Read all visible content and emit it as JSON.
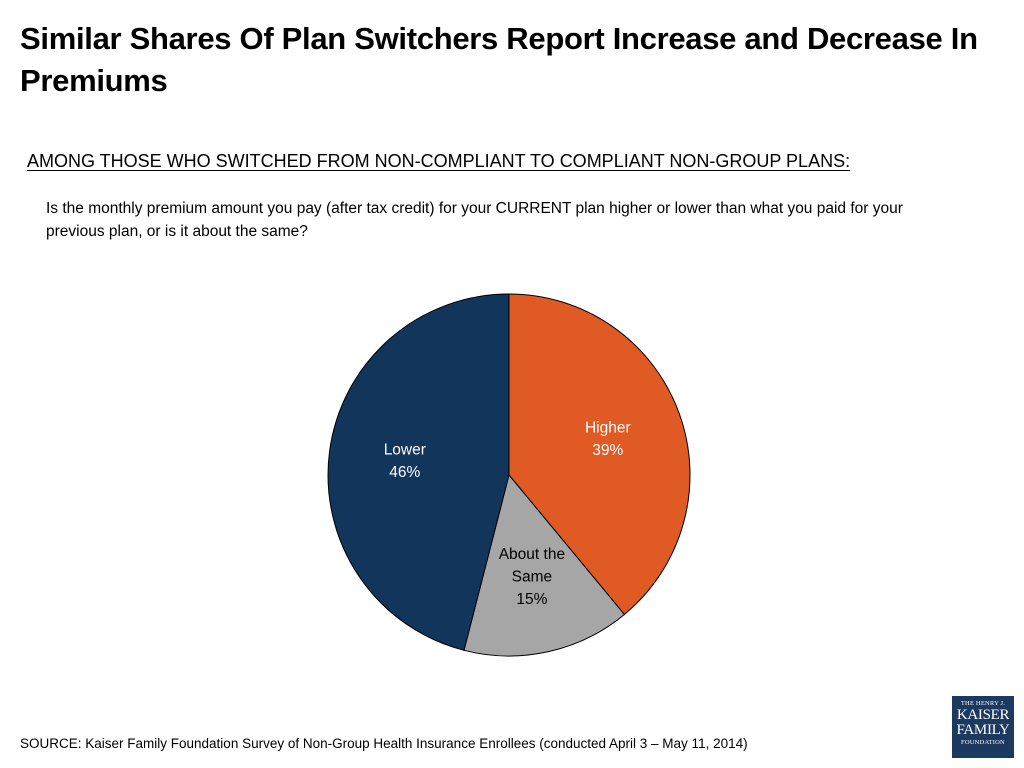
{
  "slide": {
    "title": "Similar Shares Of Plan Switchers Report Increase and Decrease In Premiums",
    "subtitle": "AMONG THOSE WHO SWITCHED FROM NON-COMPLIANT TO COMPLIANT NON-GROUP PLANS:",
    "question": "Is the monthly premium amount you pay (after tax credit) for your CURRENT plan higher or lower than what you paid for your previous plan, or is it about the same?",
    "source": "SOURCE: Kaiser Family Foundation Survey of Non-Group Health Insurance Enrollees (conducted April 3 – May 11, 2014)"
  },
  "logo": {
    "line1": "THE HENRY J.",
    "line2": "KAISER",
    "line3": "FAMILY",
    "line4": "FOUNDATION",
    "color": "#1c3a5f"
  },
  "chart_data": {
    "type": "pie",
    "title": "",
    "start": "12 o'clock, clockwise",
    "slices": [
      {
        "key": "higher",
        "label": "Higher",
        "value": 39,
        "display": "39%",
        "color": "#e05a24",
        "text_color": "#ffffff"
      },
      {
        "key": "same",
        "label": "About the Same",
        "label_lines": [
          "About the",
          "Same"
        ],
        "value": 15,
        "display": "15%",
        "color": "#a6a6a6",
        "text_color": "#000000"
      },
      {
        "key": "lower",
        "label": "Lower",
        "value": 46,
        "display": "46%",
        "color": "#12355b",
        "text_color": "#ffffff"
      }
    ]
  }
}
